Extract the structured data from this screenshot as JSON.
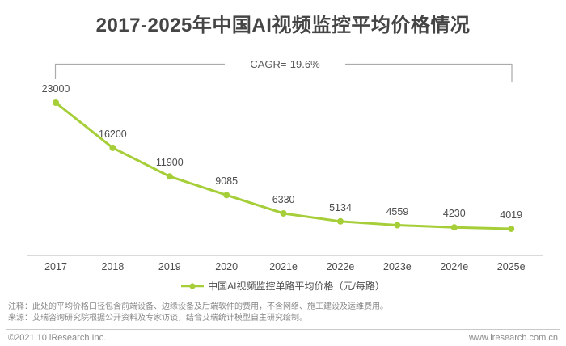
{
  "page": {
    "title": "2017-2025年中国AI视频监控平均价格情况",
    "notes": [
      "注释：此处的平均价格口径包含前端设备、边缘设备及后端软件的费用，不含网络、施工建设及运维费用。",
      "来源：艾瑞咨询研究院根据公开资料及专家访谈，结合艾瑞统计模型自主研究绘制。"
    ],
    "footer_left": "©2021.10 iResearch Inc.",
    "footer_right": "www.iresearch.com.cn"
  },
  "chart_data": {
    "type": "line",
    "title": "2017-2025年中国AI视频监控平均价格情况",
    "categories": [
      "2017",
      "2018",
      "2019",
      "2020",
      "2021e",
      "2022e",
      "2023e",
      "2024e",
      "2025e"
    ],
    "series": [
      {
        "name": "中国AI视频监控单路平均价格（元/每路）",
        "values": [
          23000,
          16200,
          11900,
          9085,
          6330,
          5134,
          4559,
          4230,
          4019
        ]
      }
    ],
    "annotation": "CAGR=-19.6%",
    "xlabel": "",
    "ylabel": "",
    "ylim": [
      0,
      24000
    ],
    "grid": false,
    "legend_position": "bottom",
    "marker": "circle"
  },
  "colors": {
    "line": "#a5ce39",
    "title_text": "#454545",
    "label_text": "#4d4d4d",
    "axis_line": "#c4c4c4",
    "bracket_line": "#ababab",
    "note_text": "#888888",
    "footer_text": "#8a8a8a"
  }
}
